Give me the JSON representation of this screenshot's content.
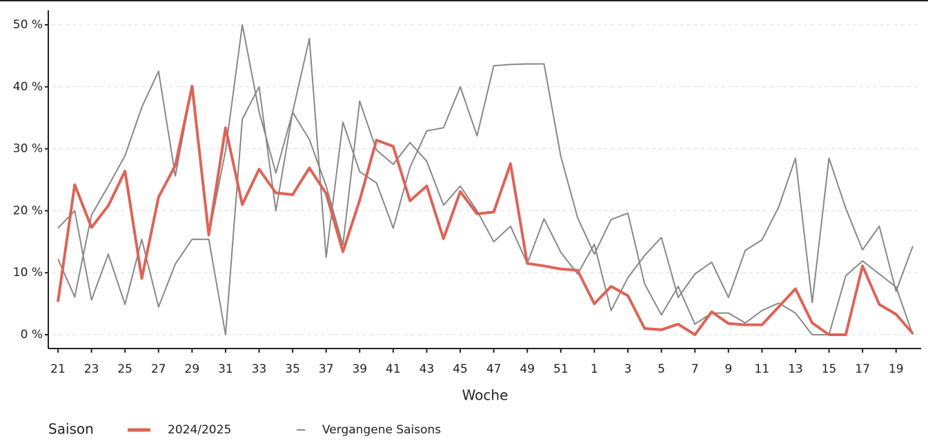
{
  "chart_data": {
    "type": "line",
    "x_label": "Woche",
    "legend_title": "Saison",
    "legend": "bottom-left",
    "grid": true,
    "categories": [
      21,
      null,
      23,
      null,
      25,
      null,
      27,
      null,
      29,
      null,
      31,
      null,
      33,
      null,
      35,
      null,
      37,
      null,
      39,
      null,
      41,
      null,
      43,
      null,
      45,
      null,
      47,
      null,
      49,
      null,
      51,
      null,
      1,
      null,
      3,
      null,
      5,
      null,
      7,
      null,
      9,
      null,
      11,
      null,
      13,
      null,
      15,
      null,
      17,
      null,
      19,
      null
    ],
    "ylim": [
      0,
      52
    ],
    "yticks": [
      {
        "value": 0,
        "label": "0 %"
      },
      {
        "value": 10,
        "label": "10 %"
      },
      {
        "value": 20,
        "label": "20 %"
      },
      {
        "value": 30,
        "label": "30 %"
      },
      {
        "value": 40,
        "label": "40 %"
      },
      {
        "value": 50,
        "label": "50 %"
      }
    ],
    "series": [
      {
        "name": "Vergangene Saisons",
        "color": "#888888",
        "values": [
          17.2,
          20,
          5.6,
          13,
          4.9,
          15.4,
          4.5,
          11.4,
          15.4,
          15.4,
          0,
          34.8,
          40,
          20,
          35.9,
          31.5,
          24,
          14.5,
          37.7,
          29.8,
          27.5,
          31,
          28,
          20.9,
          24,
          20,
          15,
          17.5,
          11.5,
          18.7,
          13.3,
          9.8,
          14.6,
          3.9,
          9.2,
          12.8,
          15.7,
          6.0,
          9.8,
          11.7,
          6.0,
          13.6,
          15.3,
          20.6,
          28.5,
          5.2,
          28.5,
          20.4,
          13.7,
          17.5,
          7.0,
          14.3
        ]
      },
      {
        "name": "Vergangene Saisons",
        "color": "#888888",
        "values": [
          12.2,
          6.1,
          19.3,
          24,
          28.9,
          36.7,
          42.5,
          25.6,
          40,
          16,
          29.7,
          50,
          36,
          26.1,
          35.9,
          47.8,
          12.5,
          34.3,
          26.3,
          24.5,
          17.2,
          27,
          32.9,
          33.4,
          40,
          32.1,
          43.4,
          43.6,
          43.7,
          43.7,
          28.8,
          18.9,
          13,
          18.6,
          19.6,
          8.2,
          3.2,
          7.8,
          1.7,
          3.5,
          3.5,
          1.9,
          3.9,
          5.1,
          3.5,
          0,
          0,
          9.5,
          11.9,
          9.8,
          7.7,
          0
        ]
      },
      {
        "name": "2024/2025",
        "color": "#dd6456",
        "values": [
          5.3,
          24.2,
          17.3,
          20.8,
          26.4,
          9.1,
          22.2,
          27.3,
          40.1,
          16.1,
          33.4,
          21.0,
          26.7,
          22.9,
          22.6,
          26.9,
          22.8,
          13.4,
          21.7,
          31.4,
          30.4,
          21.6,
          24.0,
          15.5,
          23.1,
          19.5,
          19.8,
          27.6,
          11.5,
          11.1,
          10.6,
          10.4,
          5.0,
          7.8,
          6.3,
          1.0,
          0.8,
          1.7,
          0,
          3.7,
          1.8,
          1.6,
          1.6,
          4.5,
          7.4,
          1.9,
          0,
          0,
          11.1,
          4.9,
          3.3,
          0.2
        ]
      }
    ]
  }
}
